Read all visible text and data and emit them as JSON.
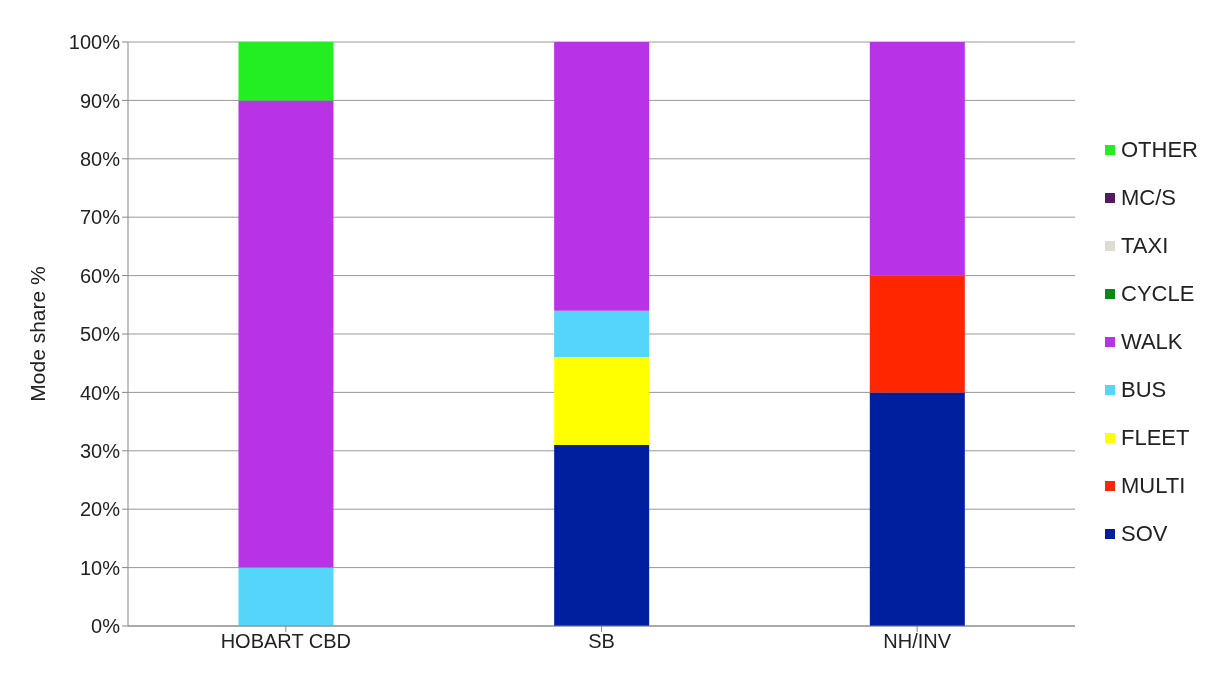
{
  "chart_data": {
    "type": "bar",
    "stacked": true,
    "ylabel": "Mode share %",
    "categories": [
      "HOBART CBD",
      "SB",
      "NH/INV"
    ],
    "series": [
      {
        "name": "SOV",
        "color": "#001f9f",
        "values": [
          0,
          31,
          40
        ]
      },
      {
        "name": "MULTI",
        "color": "#ff2600",
        "values": [
          0,
          0,
          20
        ]
      },
      {
        "name": "FLEET",
        "color": "#ffff00",
        "values": [
          0,
          15,
          0
        ]
      },
      {
        "name": "BUS",
        "color": "#56d5fb",
        "values": [
          10,
          8,
          0
        ]
      },
      {
        "name": "WALK",
        "color": "#b832e6",
        "values": [
          80,
          46,
          40
        ]
      },
      {
        "name": "CYCLE",
        "color": "#0a8a14",
        "values": [
          0,
          0,
          0
        ]
      },
      {
        "name": "TAXI",
        "color": "#e0dcd0",
        "values": [
          0,
          0,
          0
        ]
      },
      {
        "name": "MC/S",
        "color": "#531b63",
        "values": [
          0,
          0,
          0
        ]
      },
      {
        "name": "OTHER",
        "color": "#22ee22",
        "values": [
          10,
          0,
          0
        ]
      }
    ],
    "ylim": [
      0,
      100
    ],
    "yticks": [
      {
        "value": 0,
        "label": "0%"
      },
      {
        "value": 10,
        "label": "10%"
      },
      {
        "value": 20,
        "label": "20%"
      },
      {
        "value": 30,
        "label": "30%"
      },
      {
        "value": 40,
        "label": "40%"
      },
      {
        "value": 50,
        "label": "50%"
      },
      {
        "value": 60,
        "label": "60%"
      },
      {
        "value": 70,
        "label": "70%"
      },
      {
        "value": 80,
        "label": "80%"
      },
      {
        "value": 90,
        "label": "90%"
      },
      {
        "value": 100,
        "label": "100%"
      }
    ],
    "grid": "y",
    "legend": "right"
  }
}
